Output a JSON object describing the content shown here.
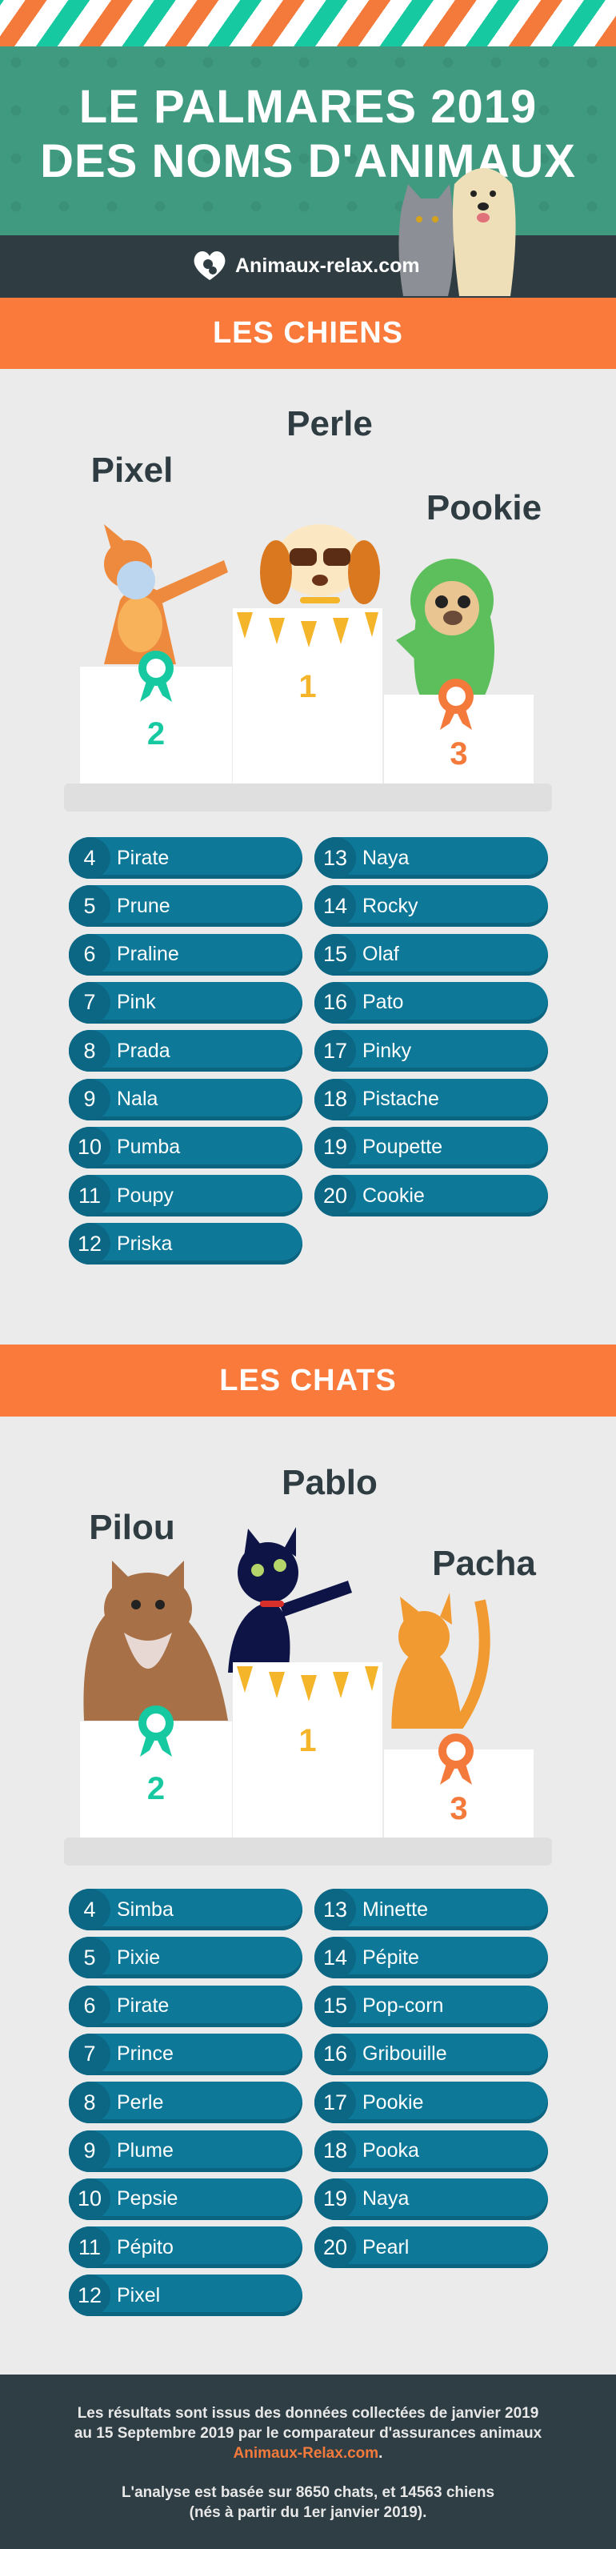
{
  "header": {
    "title_line1": "LE PALMARES 2019",
    "title_line2": "DES NOMS D'ANIMAUX",
    "brand": "Animaux-relax.com"
  },
  "colors": {
    "orange": "#fa7a3c",
    "teal": "#16c9a0",
    "green": "#3f9a7f",
    "dark": "#2f3d43",
    "pill": "#0e7898"
  },
  "dogs": {
    "heading": "LES CHIENS",
    "podium": [
      {
        "rank": "1",
        "name": "Perle"
      },
      {
        "rank": "2",
        "name": "Pixel"
      },
      {
        "rank": "3",
        "name": "Pookie"
      }
    ],
    "list": [
      {
        "rank": "4",
        "name": "Pirate"
      },
      {
        "rank": "5",
        "name": "Prune"
      },
      {
        "rank": "6",
        "name": "Praline"
      },
      {
        "rank": "7",
        "name": "Pink"
      },
      {
        "rank": "8",
        "name": "Prada"
      },
      {
        "rank": "9",
        "name": "Nala"
      },
      {
        "rank": "10",
        "name": "Pumba"
      },
      {
        "rank": "11",
        "name": "Poupy"
      },
      {
        "rank": "12",
        "name": "Priska"
      },
      {
        "rank": "13",
        "name": "Naya"
      },
      {
        "rank": "14",
        "name": "Rocky"
      },
      {
        "rank": "15",
        "name": "Olaf"
      },
      {
        "rank": "16",
        "name": "Pato"
      },
      {
        "rank": "17",
        "name": "Pinky"
      },
      {
        "rank": "18",
        "name": "Pistache"
      },
      {
        "rank": "19",
        "name": "Poupette"
      },
      {
        "rank": "20",
        "name": "Cookie"
      }
    ]
  },
  "cats": {
    "heading": "LES CHATS",
    "podium": [
      {
        "rank": "1",
        "name": "Pablo"
      },
      {
        "rank": "2",
        "name": "Pilou"
      },
      {
        "rank": "3",
        "name": "Pacha"
      }
    ],
    "list": [
      {
        "rank": "4",
        "name": "Simba"
      },
      {
        "rank": "5",
        "name": "Pixie"
      },
      {
        "rank": "6",
        "name": "Pirate"
      },
      {
        "rank": "7",
        "name": "Prince"
      },
      {
        "rank": "8",
        "name": "Perle"
      },
      {
        "rank": "9",
        "name": "Plume"
      },
      {
        "rank": "10",
        "name": "Pepsie"
      },
      {
        "rank": "11",
        "name": "Pépito"
      },
      {
        "rank": "12",
        "name": "Pixel"
      },
      {
        "rank": "13",
        "name": "Minette"
      },
      {
        "rank": "14",
        "name": "Pépite"
      },
      {
        "rank": "15",
        "name": "Pop-corn"
      },
      {
        "rank": "16",
        "name": "Gribouille"
      },
      {
        "rank": "17",
        "name": "Pookie"
      },
      {
        "rank": "18",
        "name": "Pooka"
      },
      {
        "rank": "19",
        "name": "Naya"
      },
      {
        "rank": "20",
        "name": "Pearl"
      }
    ]
  },
  "footer": {
    "line1": "Les résultats sont issus des données collectées de janvier 2019",
    "line2": "au 15 Septembre 2019 par le comparateur d'assurances animaux",
    "link": "Animaux-Relax.com",
    "link_suffix": ".",
    "line4": "L'analyse est basée sur 8650 chats, et 14563 chiens",
    "line5": "(nés à partir du 1er janvier 2019)."
  }
}
